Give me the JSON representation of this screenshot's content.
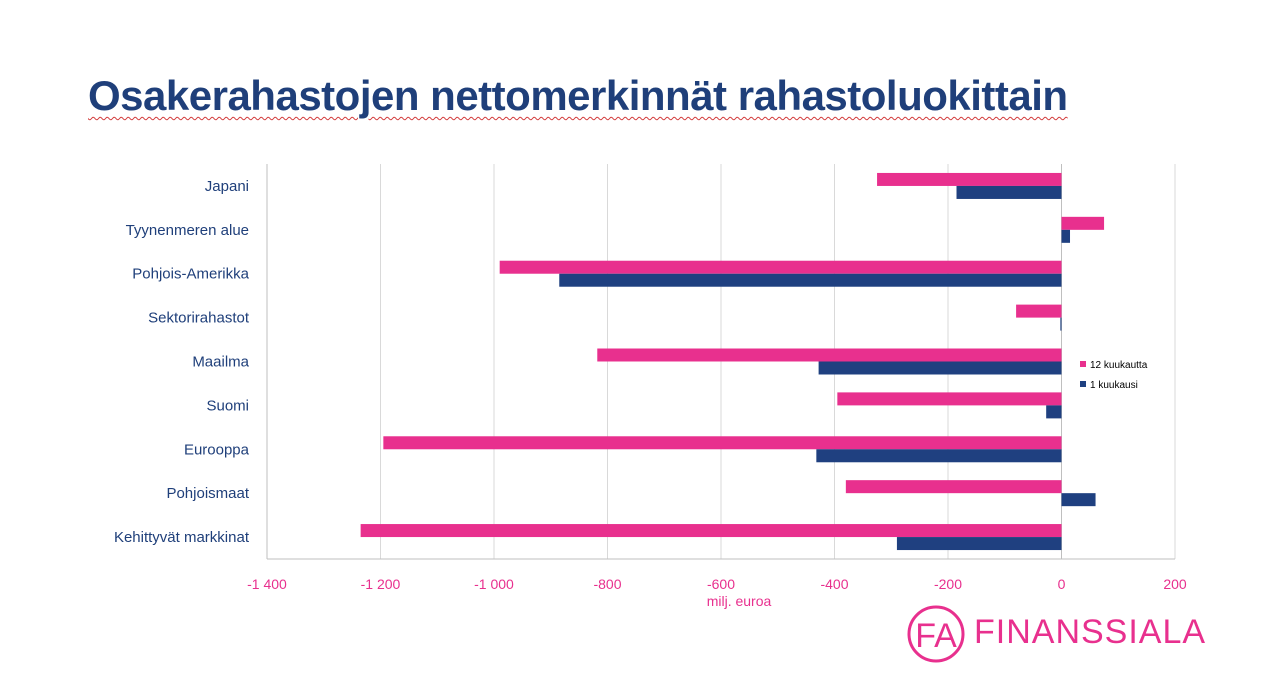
{
  "title": "Osakerahastojen nettomerkinnät rahastoluokittain",
  "colors": {
    "series_12": "#e8308e",
    "series_1": "#1f4080",
    "title": "#1f3f7a",
    "grid": "#d9d9d9"
  },
  "chart_data": {
    "type": "bar",
    "orientation": "horizontal",
    "categories": [
      "Japani",
      "Tyynenmeren alue",
      "Pohjois-Amerikka",
      "Sektorirahastot",
      "Maailma",
      "Suomi",
      "Eurooppa",
      "Pohjoismaat",
      "Kehittyvät markkinat"
    ],
    "series": [
      {
        "name": "12 kuukautta",
        "values": [
          -325,
          75,
          -990,
          -80,
          -818,
          -395,
          -1195,
          -380,
          -1235
        ]
      },
      {
        "name": "1 kuukausi",
        "values": [
          -185,
          15,
          -885,
          -2,
          -428,
          -27,
          -432,
          60,
          -290
        ]
      }
    ],
    "xlim": [
      -1400,
      200
    ],
    "x_ticks": [
      -1400,
      -1200,
      -1000,
      -800,
      -600,
      -400,
      -200,
      0,
      200
    ],
    "x_tick_labels": [
      "-1 400",
      "-1 200",
      "-1 000",
      "-800",
      "-600",
      "-400",
      "-200",
      "0",
      "200"
    ],
    "xlabel": "milj. euroa",
    "ylabel": "",
    "grid": true,
    "legend_position": "right"
  },
  "logo": {
    "mark": "FA",
    "text": "FINANSSIALA"
  }
}
